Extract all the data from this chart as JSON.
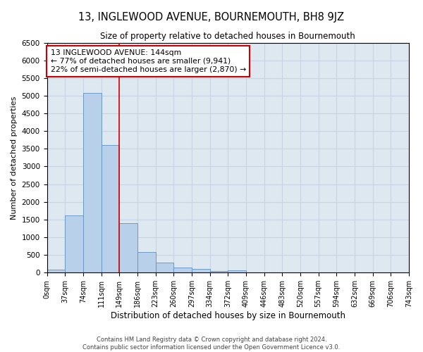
{
  "title": "13, INGLEWOOD AVENUE, BOURNEMOUTH, BH8 9JZ",
  "subtitle": "Size of property relative to detached houses in Bournemouth",
  "xlabel": "Distribution of detached houses by size in Bournemouth",
  "ylabel": "Number of detached properties",
  "footer_line1": "Contains HM Land Registry data © Crown copyright and database right 2024.",
  "footer_line2": "Contains public sector information licensed under the Open Government Licence v3.0.",
  "bin_labels": [
    "0sqm",
    "37sqm",
    "74sqm",
    "111sqm",
    "149sqm",
    "186sqm",
    "223sqm",
    "260sqm",
    "297sqm",
    "334sqm",
    "372sqm",
    "409sqm",
    "446sqm",
    "483sqm",
    "520sqm",
    "557sqm",
    "594sqm",
    "632sqm",
    "669sqm",
    "706sqm",
    "743sqm"
  ],
  "bar_values": [
    75,
    1625,
    5075,
    3600,
    1400,
    580,
    290,
    140,
    105,
    40,
    55,
    0,
    0,
    0,
    0,
    0,
    0,
    0,
    0,
    0
  ],
  "bar_color": "#b8d0ea",
  "bar_edge_color": "#6090c0",
  "grid_color": "#c8d4e4",
  "vline_x": 4.0,
  "vline_color": "#cc0000",
  "annotation_text": "13 INGLEWOOD AVENUE: 144sqm\n← 77% of detached houses are smaller (9,941)\n22% of semi-detached houses are larger (2,870) →",
  "annotation_box_color": "#ffffff",
  "annotation_box_edge": "#cc0000",
  "ylim": [
    0,
    6500
  ],
  "yticks": [
    0,
    500,
    1000,
    1500,
    2000,
    2500,
    3000,
    3500,
    4000,
    4500,
    5000,
    5500,
    6000,
    6500
  ],
  "num_bins": 20,
  "background_color": "#dde8f0"
}
